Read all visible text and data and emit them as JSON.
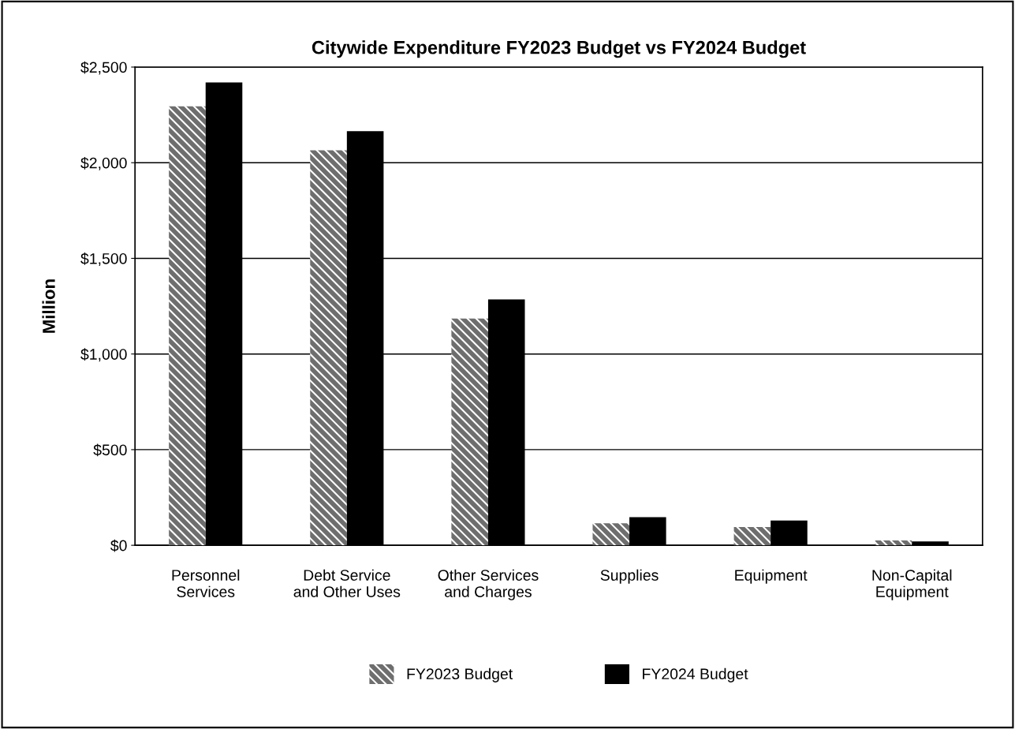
{
  "chart_data": {
    "type": "bar",
    "title": "Citywide Expenditure FY2023 Budget vs FY2024 Budget",
    "ylabel": "Million",
    "categories": [
      "Personnel\nServices",
      "Debt Service\nand Other Uses",
      "Other Services\nand Charges",
      "Supplies",
      "Equipment",
      "Non-Capital\nEquipment"
    ],
    "series": [
      {
        "name": "FY2023 Budget",
        "color": "#6e6e6e",
        "values": [
          2295,
          2065,
          1185,
          115,
          95,
          25
        ]
      },
      {
        "name": "FY2024 Budget",
        "color": "#000000",
        "values": [
          2420,
          2165,
          1285,
          147,
          130,
          20
        ]
      }
    ],
    "ylim": [
      0,
      2500
    ],
    "yticks": [
      {
        "value": 0,
        "label": "$0"
      },
      {
        "value": 500,
        "label": "$500"
      },
      {
        "value": 1000,
        "label": "$1,000"
      },
      {
        "value": 1500,
        "label": "$1,500"
      },
      {
        "value": 2000,
        "label": "$2,000"
      },
      {
        "value": 2500,
        "label": "$2,500"
      }
    ],
    "grid": "y",
    "legend": "bottom"
  }
}
